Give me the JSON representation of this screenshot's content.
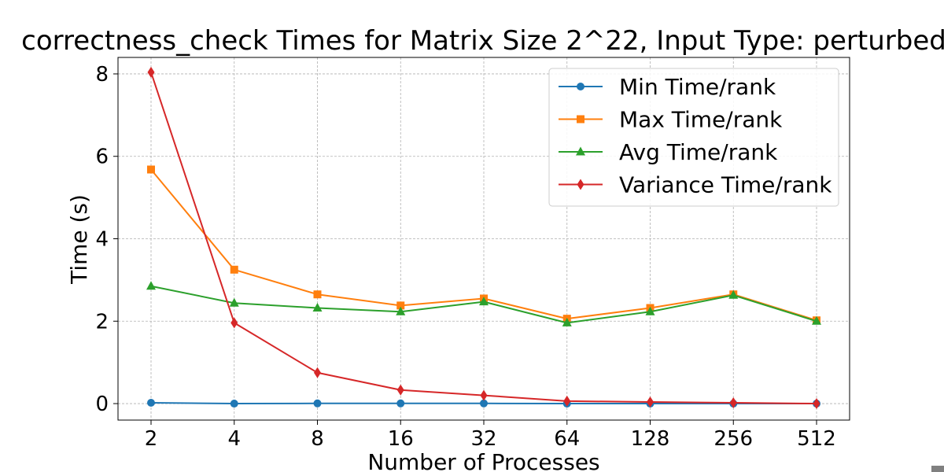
{
  "chart_data": {
    "type": "line",
    "title": "correctness_check Times for Matrix Size 2^22, Input Type: perturbed",
    "xlabel": "Number of Processes",
    "ylabel": "Time (s)",
    "x_scale": "log2",
    "x": [
      2,
      4,
      8,
      16,
      32,
      64,
      128,
      256,
      512
    ],
    "x_ticks": [
      "2",
      "4",
      "8",
      "16",
      "32",
      "64",
      "128",
      "256",
      "512"
    ],
    "y_ticks": [
      "0",
      "2",
      "4",
      "6",
      "8"
    ],
    "ylim": [
      -0.4,
      8.4
    ],
    "grid": true,
    "legend_position": "top-right",
    "series": [
      {
        "name": "Min Time/rank",
        "color": "#1f77b4",
        "marker": "circle",
        "values": [
          0.02,
          0.0,
          0.005,
          0.005,
          0.005,
          0.0,
          0.0,
          0.0,
          0.0
        ]
      },
      {
        "name": "Max Time/rank",
        "color": "#ff7f0e",
        "marker": "square",
        "values": [
          5.68,
          3.25,
          2.65,
          2.38,
          2.55,
          2.06,
          2.32,
          2.65,
          2.02
        ]
      },
      {
        "name": "Avg Time/rank",
        "color": "#2ca02c",
        "marker": "triangle",
        "values": [
          2.85,
          2.44,
          2.32,
          2.23,
          2.47,
          1.96,
          2.23,
          2.63,
          2.0
        ]
      },
      {
        "name": "Variance Time/rank",
        "color": "#d62728",
        "marker": "diamond",
        "values": [
          8.04,
          1.96,
          0.75,
          0.33,
          0.2,
          0.06,
          0.04,
          0.02,
          0.0
        ]
      }
    ]
  }
}
